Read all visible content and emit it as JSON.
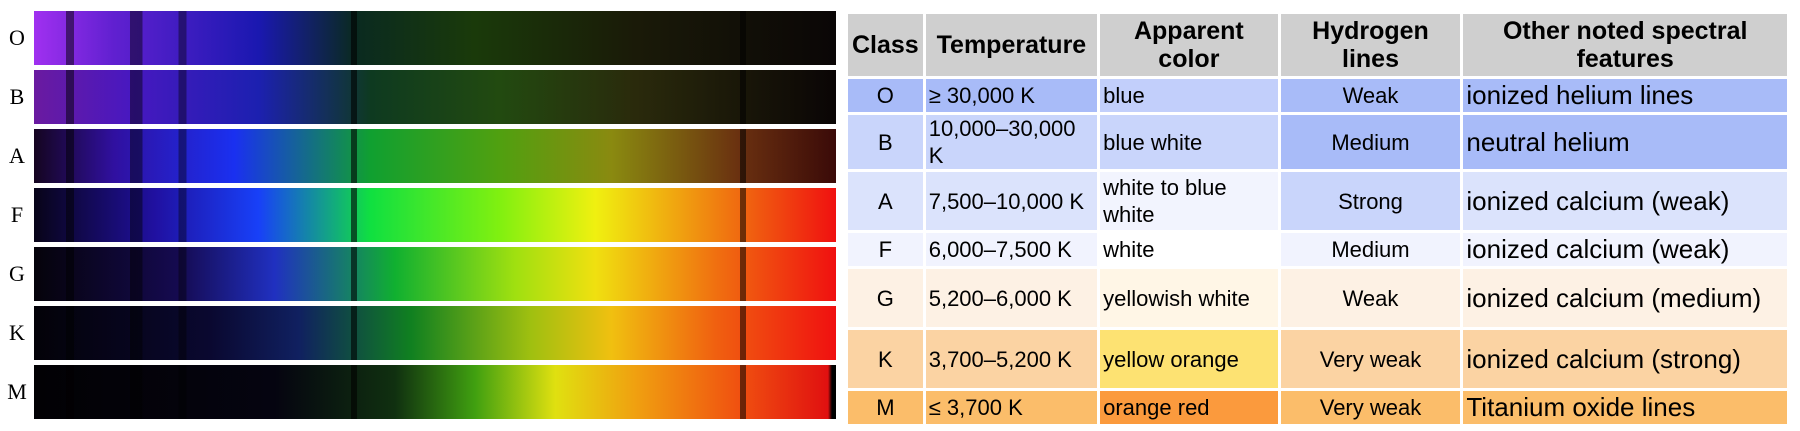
{
  "spectra": {
    "labels": [
      "O",
      "B",
      "A",
      "F",
      "G",
      "K",
      "M"
    ]
  },
  "table": {
    "headers": [
      "Class",
      "Temperature",
      "Apparent color",
      "Hydrogen lines",
      "Other noted spectral features"
    ],
    "rows": [
      [
        "O",
        "≥ 30,000 K",
        "blue",
        "Weak",
        "ionized helium lines"
      ],
      [
        "B",
        "10,000–30,000 K",
        "blue white",
        "Medium",
        "neutral helium"
      ],
      [
        "A",
        "7,500–10,000 K",
        "white to blue white",
        "Strong",
        "ionized calcium (weak)"
      ],
      [
        "F",
        "6,000–7,500 K",
        "white",
        "Medium",
        "ionized calcium (weak)"
      ],
      [
        "G",
        "5,200–6,000 K",
        "yellowish white",
        "Weak",
        "ionized calcium (medium)"
      ],
      [
        "K",
        "3,700–5,200 K",
        "yellow orange",
        "Very weak",
        "ionized calcium (strong)"
      ],
      [
        "M",
        "≤ 3,700 K",
        "orange red",
        "Very weak",
        "Titanium oxide lines"
      ]
    ]
  }
}
